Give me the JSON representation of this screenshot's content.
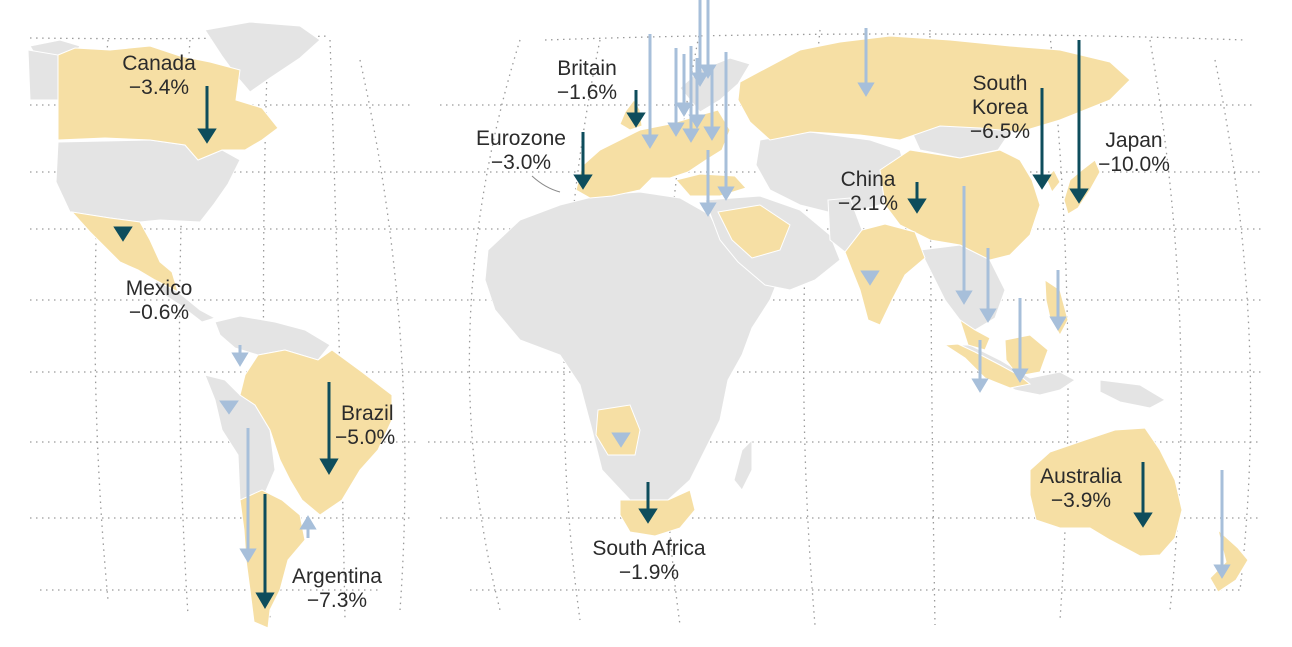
{
  "colors": {
    "highlight_land": "#f6dfa4",
    "other_land": "#e4e4e4",
    "border": "#ffffff",
    "graticule": "#9a9a9a",
    "labeled_arrow": "#0e4d5c",
    "other_arrow": "#a7bfda",
    "label_text": "#2b2b2b",
    "leader_line": "#8a8a8a"
  },
  "labels": [
    {
      "id": "canada",
      "name": "Canada",
      "value": "−3.4%"
    },
    {
      "id": "mexico",
      "name": "Mexico",
      "value": "−0.6%"
    },
    {
      "id": "brazil",
      "name": "Brazil",
      "value": "−5.0%"
    },
    {
      "id": "argentina",
      "name": "Argentina",
      "value": "−7.3%"
    },
    {
      "id": "britain",
      "name": "Britain",
      "value": "−1.6%"
    },
    {
      "id": "eurozone",
      "name": "Eurozone",
      "value": "−3.0%"
    },
    {
      "id": "south-africa",
      "name": "South Africa",
      "value": "−1.9%"
    },
    {
      "id": "china",
      "name": "China",
      "value": "−2.1%"
    },
    {
      "id": "south-korea",
      "name": "South Korea",
      "value": "−6.5%"
    },
    {
      "id": "japan",
      "name": "Japan",
      "value": "−10.0%"
    },
    {
      "id": "australia",
      "name": "Australia",
      "value": "−3.9%"
    }
  ]
}
